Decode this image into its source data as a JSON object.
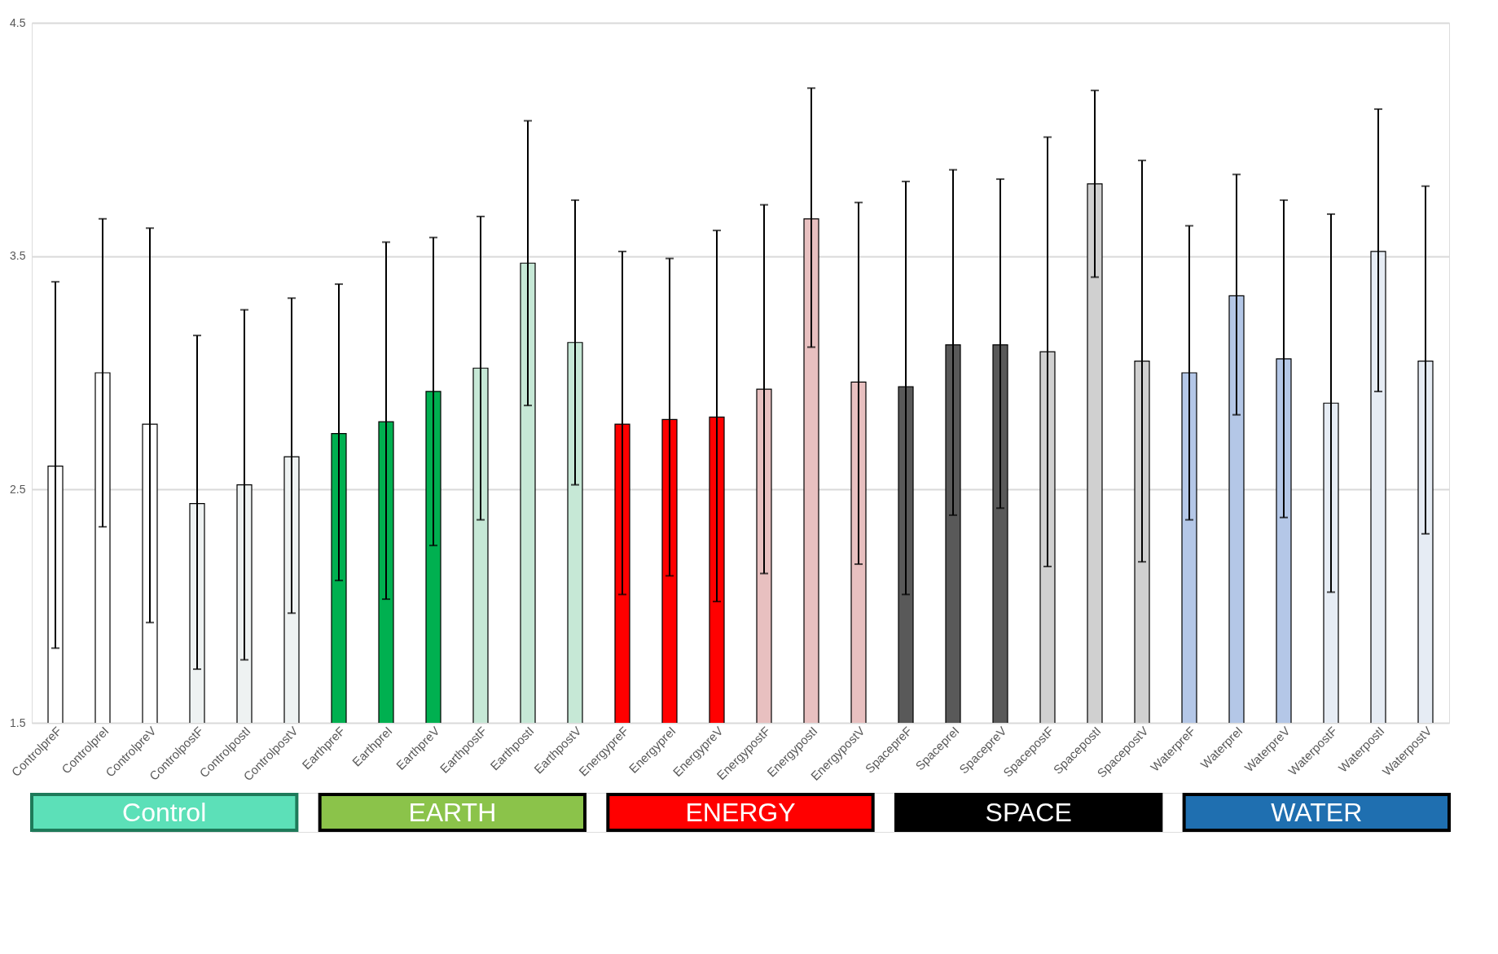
{
  "chart_data": {
    "type": "bar",
    "categories": [
      "ControlpreF",
      "ControlpreI",
      "ControlpreV",
      "ControlpostF",
      "ControlpostI",
      "ControlpostV",
      "EarthpreF",
      "EarthpreI",
      "EarthpreV",
      "EarthpostF",
      "EarthpostI",
      "EarthpostV",
      "EnergypreF",
      "EnergypreI",
      "EnergypreV",
      "EnergypostF",
      "EnergypostI",
      "EnergypostV",
      "SpacepreF",
      "SpacepreI",
      "SpacepreV",
      "SpacepostF",
      "SpacepostI",
      "SpacepostV",
      "WaterpreF",
      "WaterpreI",
      "WaterpreV",
      "WaterpostF",
      "WaterpostI",
      "WaterpostV"
    ],
    "values": [
      2.6,
      3.0,
      2.78,
      2.44,
      2.52,
      2.64,
      2.74,
      2.79,
      2.92,
      3.02,
      3.47,
      3.13,
      2.78,
      2.8,
      2.81,
      2.93,
      3.66,
      2.96,
      2.94,
      3.12,
      3.12,
      3.09,
      3.81,
      3.05,
      3.0,
      3.33,
      3.06,
      2.87,
      3.52,
      3.05
    ],
    "colors": [
      "#ffffff",
      "#ffffff",
      "#ffffff",
      "#eef2f2",
      "#eef2f2",
      "#eef2f2",
      "#00b050",
      "#00b050",
      "#00b050",
      "#c6e8d6",
      "#c6e8d6",
      "#c6e8d6",
      "#ff0000",
      "#ff0000",
      "#ff0000",
      "#e8c0c0",
      "#e8c0c0",
      "#e8c0c0",
      "#595959",
      "#595959",
      "#595959",
      "#d0d0d0",
      "#d0d0d0",
      "#d0d0d0",
      "#b4c7e7",
      "#b4c7e7",
      "#b4c7e7",
      "#e6ecf4",
      "#e6ecf4",
      "#e6ecf4"
    ],
    "errors": [
      [
        1.82,
        3.39
      ],
      [
        2.34,
        3.66
      ],
      [
        1.93,
        3.62
      ],
      [
        1.73,
        3.16
      ],
      [
        1.77,
        3.27
      ],
      [
        1.97,
        3.32
      ],
      [
        2.11,
        3.38
      ],
      [
        2.03,
        3.56
      ],
      [
        2.26,
        3.58
      ],
      [
        2.37,
        3.67
      ],
      [
        2.86,
        4.08
      ],
      [
        2.52,
        3.74
      ],
      [
        2.05,
        3.52
      ],
      [
        2.13,
        3.49
      ],
      [
        2.02,
        3.61
      ],
      [
        2.14,
        3.72
      ],
      [
        3.11,
        4.22
      ],
      [
        2.18,
        3.73
      ],
      [
        2.05,
        3.82
      ],
      [
        2.39,
        3.87
      ],
      [
        2.42,
        3.83
      ],
      [
        2.17,
        4.01
      ],
      [
        3.41,
        4.21
      ],
      [
        2.19,
        3.91
      ],
      [
        2.37,
        3.63
      ],
      [
        2.82,
        3.85
      ],
      [
        2.38,
        3.74
      ],
      [
        2.06,
        3.68
      ],
      [
        2.92,
        4.13
      ],
      [
        2.31,
        3.8
      ]
    ],
    "ylim": [
      1.5,
      4.5
    ],
    "yticks": [
      1.5,
      2.5,
      3.5,
      4.5
    ],
    "grid": "y",
    "annotations": [
      "Control",
      "EARTH",
      "ENERGY",
      "SPACE",
      "WATER"
    ]
  }
}
